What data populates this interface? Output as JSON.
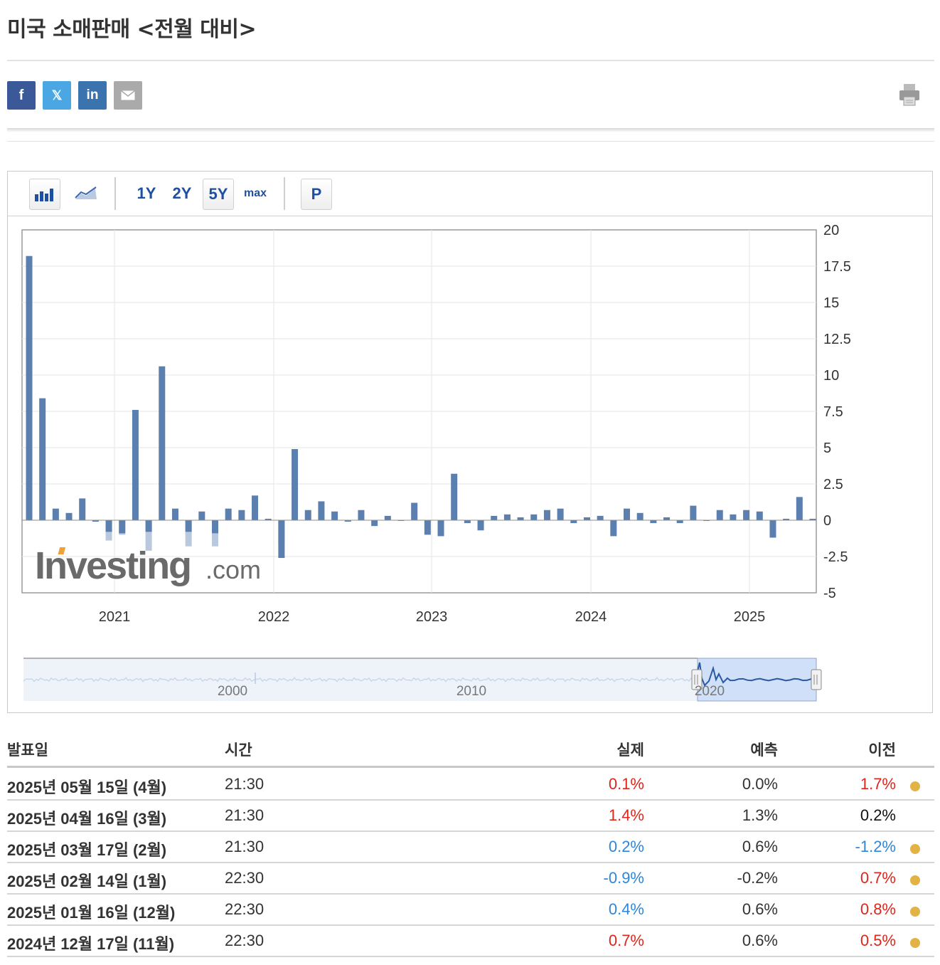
{
  "page": {
    "title": "미국 소매판매 <전월 대비>"
  },
  "share": {
    "facebook": {
      "icon": "facebook-icon",
      "glyph": "f",
      "color": "#3b5998"
    },
    "x": {
      "icon": "x-icon",
      "glyph": "𝕏",
      "color": "#4aa7e4"
    },
    "linkedin": {
      "icon": "linkedin-icon",
      "glyph": "in",
      "color": "#3a73ad"
    },
    "email": {
      "icon": "email-icon",
      "color": "#aaaaaa"
    },
    "print": {
      "icon": "print-icon"
    }
  },
  "toolbar": {
    "bar_chart_icon": "bar-chart-icon",
    "line_chart_icon": "line-chart-icon",
    "ranges": [
      "1Y",
      "2Y",
      "5Y",
      "max"
    ],
    "active_range": "5Y",
    "p_label": "P"
  },
  "chart_data": {
    "type": "bar",
    "x_tick_labels": [
      "2021",
      "2022",
      "2023",
      "2024",
      "2025"
    ],
    "y_tick_labels": [
      "20",
      "17.5",
      "15",
      "12.5",
      "10",
      "7.5",
      "5",
      "2.5",
      "0",
      "-2.5",
      "-5"
    ],
    "ylim": [
      -5,
      20
    ],
    "grid": true,
    "y_axis_side": "right",
    "series_actual": [
      18.2,
      8.4,
      0.8,
      0.5,
      1.5,
      -0.1,
      -0.8,
      -0.9,
      7.6,
      -0.8,
      10.6,
      0.8,
      -0.8,
      0.6,
      -0.9,
      0.8,
      0.7,
      1.7,
      0.1,
      -2.6,
      4.9,
      0.7,
      1.3,
      0.6,
      -0.1,
      0.7,
      -0.4,
      0.3,
      0.0,
      1.2,
      -1.0,
      -1.1,
      3.2,
      -0.2,
      -0.7,
      0.3,
      0.4,
      0.2,
      0.4,
      0.7,
      0.8,
      -0.2,
      0.2,
      0.3,
      -1.1,
      0.8,
      0.5,
      -0.2,
      0.2,
      -0.2,
      1.0,
      0.0,
      0.7,
      0.4,
      0.7,
      0.6,
      -1.2,
      0.1,
      1.6,
      0.1
    ],
    "series_forecast_neg": [
      null,
      null,
      null,
      null,
      null,
      null,
      -1.4,
      -1.0,
      null,
      -2.1,
      null,
      null,
      -1.8,
      null,
      -1.8,
      null,
      null,
      null,
      null,
      -1.6,
      null,
      null,
      null,
      null,
      null,
      null,
      null,
      null,
      null,
      null,
      null,
      null,
      null,
      null,
      null,
      null,
      null,
      null,
      null,
      null,
      null,
      null,
      null,
      null,
      null,
      null,
      null,
      null,
      null,
      null,
      null,
      null,
      null,
      null,
      null,
      null,
      null,
      null,
      null,
      null
    ],
    "navigator_tick_labels": [
      "2000",
      "2010",
      "2020"
    ],
    "watermark": "Investing.com"
  },
  "table": {
    "headers": {
      "date": "발표일",
      "time": "시간",
      "actual": "실제",
      "forecast": "예측",
      "previous": "이전"
    },
    "rows": [
      {
        "date": "2025년 05월 15일 (4월)",
        "time": "21:30",
        "actual": "0.1%",
        "actual_color": "red",
        "forecast": "0.0%",
        "previous": "1.7%",
        "previous_color": "red",
        "dot": true
      },
      {
        "date": "2025년 04월 16일 (3월)",
        "time": "21:30",
        "actual": "1.4%",
        "actual_color": "red",
        "forecast": "1.3%",
        "previous": "0.2%",
        "previous_color": "black",
        "dot": false
      },
      {
        "date": "2025년 03월 17일 (2월)",
        "time": "21:30",
        "actual": "0.2%",
        "actual_color": "blue",
        "forecast": "0.6%",
        "previous": "-1.2%",
        "previous_color": "blue",
        "dot": true
      },
      {
        "date": "2025년 02월 14일 (1월)",
        "time": "22:30",
        "actual": "-0.9%",
        "actual_color": "blue",
        "forecast": "-0.2%",
        "previous": "0.7%",
        "previous_color": "red",
        "dot": true
      },
      {
        "date": "2025년 01월 16일 (12월)",
        "time": "22:30",
        "actual": "0.4%",
        "actual_color": "blue",
        "forecast": "0.6%",
        "previous": "0.8%",
        "previous_color": "red",
        "dot": true
      },
      {
        "date": "2024년 12월 17일 (11월)",
        "time": "22:30",
        "actual": "0.7%",
        "actual_color": "red",
        "forecast": "0.6%",
        "previous": "0.5%",
        "previous_color": "red",
        "dot": true
      }
    ]
  }
}
